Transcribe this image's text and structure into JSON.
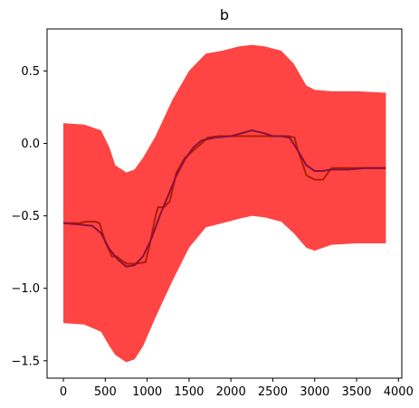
{
  "chart_data": {
    "type": "line",
    "title": "b",
    "xlabel": "",
    "ylabel": "",
    "xlim": [
      -195,
      4040
    ],
    "ylim": [
      -1.62,
      0.79
    ],
    "x_ticks": [
      0,
      500,
      1000,
      1500,
      2000,
      2500,
      3000,
      3500,
      4000
    ],
    "y_ticks": [
      0.5,
      0.0,
      -0.5,
      -1.0,
      -1.5
    ],
    "grid": false,
    "colors": {
      "band": "#ff4040",
      "series_step": "#b22000",
      "series_smooth": "#8a1040"
    },
    "band": {
      "x": [
        0,
        250,
        450,
        550,
        620,
        750,
        850,
        950,
        1100,
        1300,
        1500,
        1700,
        1900,
        2100,
        2250,
        2400,
        2600,
        2750,
        2900,
        3000,
        3200,
        3500,
        3850
      ],
      "upper": [
        0.14,
        0.13,
        0.09,
        -0.03,
        -0.15,
        -0.2,
        -0.18,
        -0.1,
        0.05,
        0.3,
        0.5,
        0.62,
        0.64,
        0.67,
        0.68,
        0.67,
        0.64,
        0.55,
        0.4,
        0.37,
        0.36,
        0.36,
        0.35
      ],
      "lower": [
        -1.24,
        -1.25,
        -1.3,
        -1.4,
        -1.46,
        -1.51,
        -1.49,
        -1.4,
        -1.2,
        -0.95,
        -0.72,
        -0.58,
        -0.55,
        -0.52,
        -0.5,
        -0.51,
        -0.54,
        -0.62,
        -0.72,
        -0.74,
        -0.7,
        -0.69,
        -0.69
      ]
    },
    "series": [
      {
        "x": [
          0,
          150,
          200,
          260,
          380,
          430,
          500,
          580,
          640,
          700,
          760,
          860,
          980,
          1030,
          1100,
          1130,
          1200,
          1270,
          1350,
          1450,
          1550,
          1650,
          1720,
          1850,
          2000,
          2100,
          2200,
          2400,
          2600,
          2700,
          2760,
          2800,
          2850,
          2900,
          3000,
          3100,
          3200,
          3300,
          3500,
          3700,
          3850
        ],
        "y": [
          -0.55,
          -0.55,
          -0.55,
          -0.54,
          -0.54,
          -0.55,
          -0.68,
          -0.78,
          -0.78,
          -0.81,
          -0.83,
          -0.83,
          -0.82,
          -0.7,
          -0.5,
          -0.44,
          -0.44,
          -0.4,
          -0.2,
          -0.1,
          -0.05,
          0.0,
          0.04,
          0.05,
          0.05,
          0.05,
          0.05,
          0.05,
          0.05,
          0.05,
          0.04,
          -0.05,
          -0.13,
          -0.22,
          -0.25,
          -0.25,
          -0.17,
          -0.17,
          -0.17,
          -0.17,
          -0.17
        ]
      },
      {
        "x": [
          0,
          200,
          350,
          450,
          550,
          650,
          750,
          850,
          950,
          1050,
          1150,
          1250,
          1350,
          1450,
          1550,
          1650,
          1800,
          2000,
          2250,
          2400,
          2500,
          2600,
          2700,
          2800,
          2900,
          3000,
          3100,
          3200,
          3400,
          3600,
          3850
        ],
        "y": [
          -0.55,
          -0.56,
          -0.57,
          -0.62,
          -0.73,
          -0.8,
          -0.85,
          -0.84,
          -0.78,
          -0.66,
          -0.5,
          -0.36,
          -0.22,
          -0.11,
          -0.03,
          0.02,
          0.04,
          0.05,
          0.09,
          0.07,
          0.05,
          0.05,
          0.04,
          -0.05,
          -0.15,
          -0.19,
          -0.19,
          -0.18,
          -0.18,
          -0.17,
          -0.17
        ]
      }
    ]
  }
}
